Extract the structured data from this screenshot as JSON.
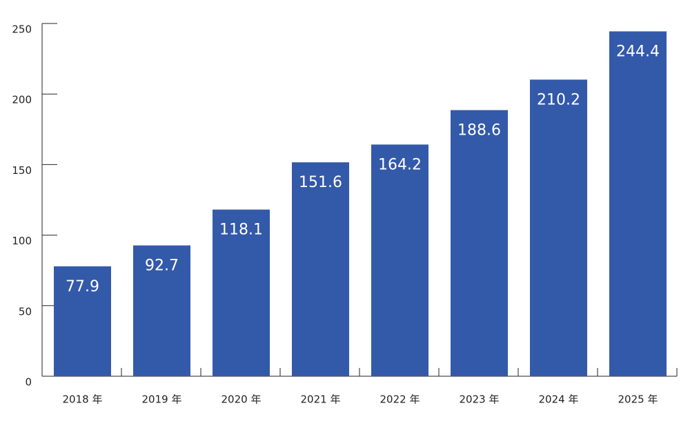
{
  "chart_data": {
    "type": "bar",
    "categories": [
      "2018 年",
      "2019 年",
      "2020 年",
      "2021 年",
      "2022 年",
      "2023 年",
      "2024 年",
      "2025 年"
    ],
    "values": [
      77.9,
      92.7,
      118.1,
      151.6,
      164.2,
      188.6,
      210.2,
      244.4
    ],
    "color": "#3359a9",
    "ylim": [
      0,
      250
    ],
    "yticks": [
      0,
      50,
      100,
      150,
      200,
      250
    ]
  }
}
